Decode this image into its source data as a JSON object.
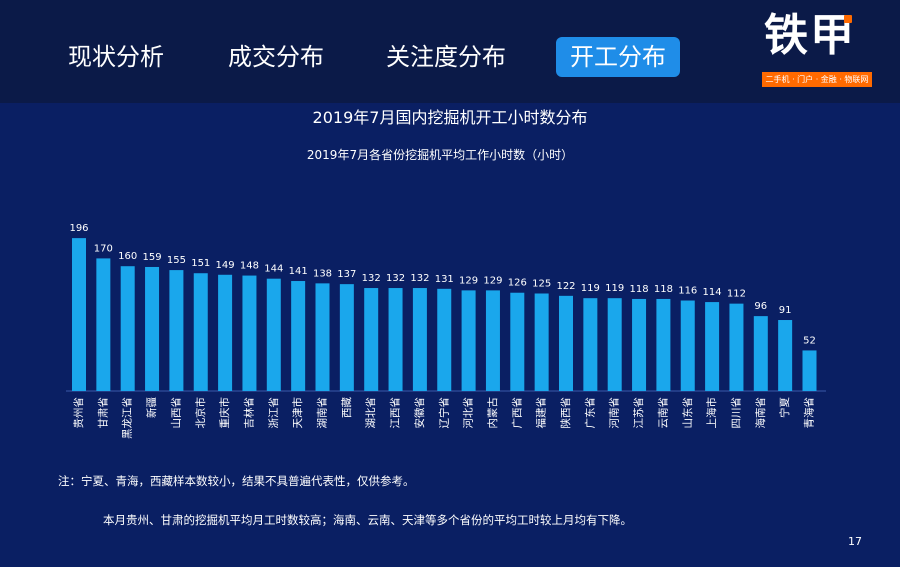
{
  "tabs": [
    {
      "label": "现状分析",
      "active": false
    },
    {
      "label": "成交分布",
      "active": false
    },
    {
      "label": "关注度分布",
      "active": false
    },
    {
      "label": "开工分布",
      "active": true
    }
  ],
  "logo": {
    "name": "铁甲",
    "tagline": "二手机 · 门户 · 金融 · 物联网"
  },
  "colors": {
    "background": "#0a1f63",
    "header": "#0b1a48",
    "bar": "#1aa7ec",
    "active_tab": "#1f8de8",
    "accent": "#ff6a00"
  },
  "chart_data": {
    "type": "bar",
    "title": "2019年7月国内挖掘机开工小时数分布",
    "subtitle": "2019年7月各省份挖掘机平均工作小时数（小时）",
    "categories": [
      "贵州省",
      "甘肃省",
      "黑龙江省",
      "新疆",
      "山西省",
      "北京市",
      "重庆市",
      "吉林省",
      "浙江省",
      "天津市",
      "湖南省",
      "西藏",
      "湖北省",
      "江西省",
      "安徽省",
      "辽宁省",
      "河北省",
      "内蒙古",
      "广西省",
      "福建省",
      "陕西省",
      "广东省",
      "河南省",
      "江苏省",
      "云南省",
      "山东省",
      "上海市",
      "四川省",
      "海南省",
      "宁夏",
      "青海省"
    ],
    "values": [
      196,
      170,
      160,
      159,
      155,
      151,
      149,
      148,
      144,
      141,
      138,
      137,
      132,
      132,
      132,
      131,
      129,
      129,
      126,
      125,
      122,
      119,
      119,
      118,
      118,
      116,
      114,
      112,
      96,
      91,
      52
    ],
    "ylim": [
      0,
      200
    ],
    "xlabel": "",
    "ylabel": "",
    "grid": false,
    "legend": "none"
  },
  "note": "注：宁夏、青海，西藏样本数较小，结果不具普遍代表性，仅供参考。",
  "summary": "本月贵州、甘肃的挖掘机平均月工时数较高；海南、云南、天津等多个省份的平均工时较上月均有下降。",
  "page_number": "17"
}
